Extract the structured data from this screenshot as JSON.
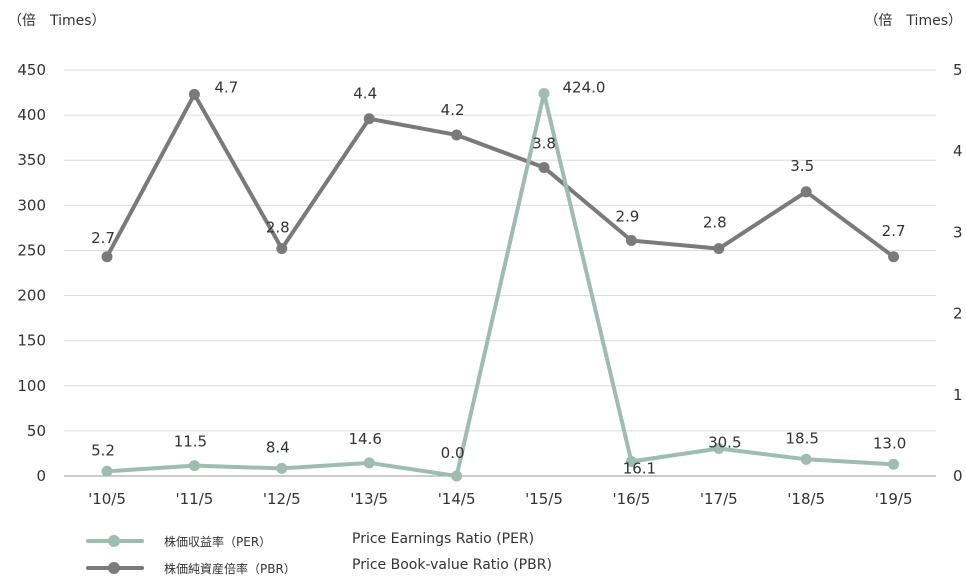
{
  "chart_data": {
    "type": "line",
    "units": {
      "left": "（倍　Times）",
      "right": "（倍　Times）"
    },
    "categories": [
      "'10/5",
      "'11/5",
      "'12/5",
      "'13/5",
      "'14/5",
      "'15/5",
      "'16/5",
      "'17/5",
      "'18/5",
      "'19/5"
    ],
    "left_axis": {
      "ylim": [
        0,
        450
      ],
      "ticks": [
        0,
        50,
        100,
        150,
        200,
        250,
        300,
        350,
        400,
        450
      ]
    },
    "right_axis": {
      "ylim": [
        0,
        5
      ],
      "ticks": [
        0,
        1,
        2,
        3,
        4,
        5
      ]
    },
    "grid": true,
    "series": [
      {
        "name": "株価収益率（PER）",
        "name_en": "Price Earnings Ratio (PER)",
        "axis": "left",
        "color": "#9dbdb0",
        "values": [
          5.2,
          11.5,
          8.4,
          14.6,
          0.0,
          424.0,
          16.1,
          30.5,
          18.5,
          13.0
        ],
        "labels": [
          "5.2",
          "11.5",
          "8.4",
          "14.6",
          "0.0",
          "424.0",
          "16.1",
          "30.5",
          "18.5",
          "13.0"
        ]
      },
      {
        "name": "株価純資産倍率（PBR）",
        "name_en": "Price Book-value Ratio (PBR)",
        "axis": "right",
        "color": "#7a7a7a",
        "values": [
          2.7,
          4.7,
          2.8,
          4.4,
          4.2,
          3.8,
          2.9,
          2.8,
          3.5,
          2.7
        ],
        "labels": [
          "2.7",
          "4.7",
          "2.8",
          "4.4",
          "4.2",
          "3.8",
          "2.9",
          "2.8",
          "3.5",
          "2.7"
        ]
      }
    ],
    "legend_position": "bottom-left"
  }
}
